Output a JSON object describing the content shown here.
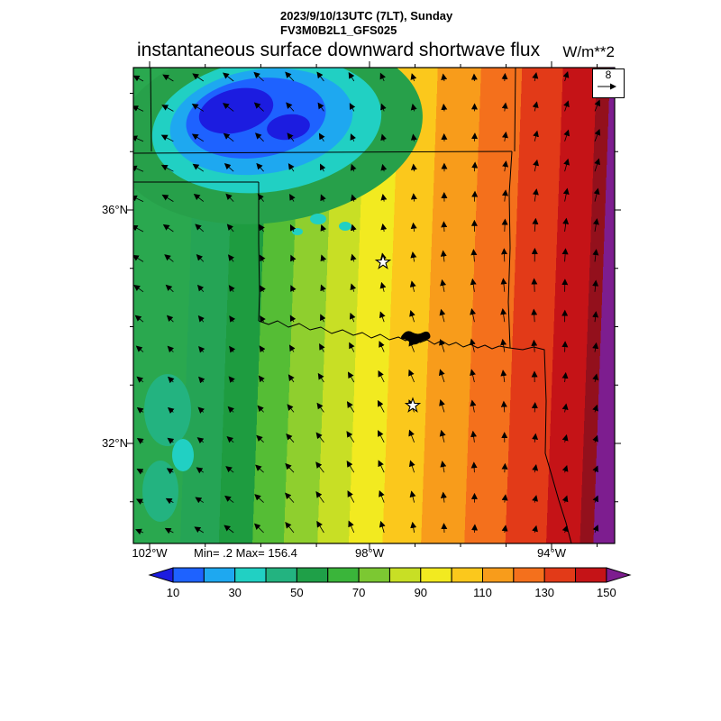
{
  "header": {
    "timestamp": "2023/9/10/13UTC (7LT), Sunday",
    "model": "FV3M0B2L1_GFS025"
  },
  "title": {
    "text": "instantaneous surface downward shortwave flux",
    "units": "W/m**2"
  },
  "stats": {
    "minmax": "Min= .2 Max= 156.4"
  },
  "axes": {
    "lat": [
      "36°N",
      "32°N"
    ],
    "lon": [
      "102°W",
      "98°W",
      "94°W"
    ]
  },
  "ref_vector": {
    "value": "8"
  },
  "colorbar": {
    "labels": [
      "10",
      "30",
      "50",
      "70",
      "90",
      "110",
      "130",
      "150"
    ],
    "colors": [
      "#1c1ce0",
      "#1e62ff",
      "#1ea8f0",
      "#21d0c3",
      "#23b380",
      "#1fa048",
      "#3ab53a",
      "#7cc832",
      "#c8df25",
      "#f2ea20",
      "#fbc81c",
      "#f89c1b",
      "#f4701c",
      "#e23a18",
      "#c51317",
      "#7d1d8f"
    ]
  },
  "map": {
    "border_color": "#000000",
    "bands": [
      {
        "c": "#2aa84f",
        "f": 0.0,
        "t": 0.115
      },
      {
        "c": "#25a455",
        "f": 0.115,
        "t": 0.195
      },
      {
        "c": "#1e9c40",
        "f": 0.195,
        "t": 0.265
      },
      {
        "c": "#55bd35",
        "f": 0.265,
        "t": 0.33
      },
      {
        "c": "#8fcf2e",
        "f": 0.33,
        "t": 0.4
      },
      {
        "c": "#c8df25",
        "f": 0.4,
        "t": 0.465
      },
      {
        "c": "#f2ea20",
        "f": 0.465,
        "t": 0.535
      },
      {
        "c": "#fbc81c",
        "f": 0.535,
        "t": 0.615
      },
      {
        "c": "#f89c1b",
        "f": 0.615,
        "t": 0.705
      },
      {
        "c": "#f4701c",
        "f": 0.705,
        "t": 0.79
      },
      {
        "c": "#e23a18",
        "f": 0.79,
        "t": 0.875
      },
      {
        "c": "#c51317",
        "f": 0.875,
        "t": 0.945
      },
      {
        "c": "#93101c",
        "f": 0.945,
        "t": 0.973
      },
      {
        "c": "#7d1d8f",
        "f": 0.973,
        "t": 1.0
      }
    ],
    "blob_colors": {
      "halo": "#27a04a",
      "cyan": "#21d0c3",
      "light_blue": "#1ea8f0",
      "blue": "#1e62ff",
      "dark_blue": "#1c1ce0",
      "teal_patch": "#23b380"
    }
  },
  "chart_data": {
    "type": "heatmap",
    "title": "instantaneous surface downward shortwave flux",
    "units": "W/m**2",
    "valid_time": "2023/9/10/13UTC (7LT), Sunday",
    "model": "FV3M0B2L1_GFS025",
    "min": 0.2,
    "max": 156.4,
    "levels": [
      10,
      30,
      50,
      70,
      90,
      110,
      130,
      150
    ],
    "palette_order": [
      "blue",
      "aqua",
      "green",
      "yellow",
      "orange",
      "red",
      "violet"
    ],
    "lat_ticks": [
      "36°N",
      "32°N"
    ],
    "lon_ticks": [
      "102°W",
      "98°W",
      "94°W"
    ],
    "wind_reference": 8,
    "legend_position": "bottom",
    "grid": false,
    "notes": "Flux increases west to east: <10 W/m**2 (blue cloudy region in northwest) up to >150 W/m**2 (violet band at east edge). Overlays: wind vector arrows, OK/TX/KS state borders, Red River with lake, 2 star city markers."
  }
}
